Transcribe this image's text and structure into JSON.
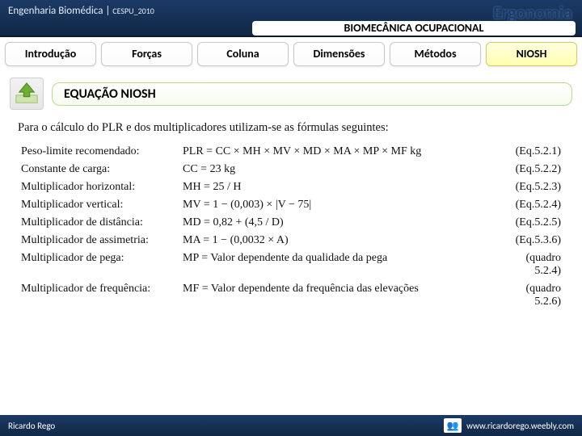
{
  "header": {
    "course_prefix": "Engenharia Biomédica",
    "course_sep": " | ",
    "course_code": "CESPU_2010",
    "brand": "Ergonomia",
    "subtitle": "BIOMECÂNICA OCUPACIONAL"
  },
  "tabs": [
    {
      "label": "Introdução",
      "active": false
    },
    {
      "label": "Forças",
      "active": false
    },
    {
      "label": "Coluna",
      "active": false
    },
    {
      "label": "Dimensões",
      "active": false
    },
    {
      "label": "Métodos",
      "active": false
    },
    {
      "label": "NIOSH",
      "active": true
    }
  ],
  "section": {
    "title": "EQUAÇÃO NIOSH",
    "intro": "Para o cálculo do PLR e dos multiplicadores utilizam-se as fórmulas seguintes:"
  },
  "formulas": [
    {
      "label": "Peso-limite recomendado:",
      "expr": "PLR = CC × MH × MV × MD × MA × MP × MF kg",
      "eq": "(Eq.5.2.1)"
    },
    {
      "label": "Constante de carga:",
      "expr": "CC = 23 kg",
      "eq": "(Eq.5.2.2)"
    },
    {
      "label": "Multiplicador horizontal:",
      "expr": "MH = 25 / H",
      "eq": "(Eq.5.2.3)"
    },
    {
      "label": "Multiplicador vertical:",
      "expr": "MV = 1 − (0,003) × |V − 75|",
      "eq": "(Eq.5.2.4)"
    },
    {
      "label": "Multiplicador de distância:",
      "expr": "MD = 0,82 + (4,5 / D)",
      "eq": "(Eq.5.2.5)"
    },
    {
      "label": "Multiplicador de assimetria:",
      "expr": "MA = 1 − (0,0032 × A)",
      "eq": "(Eq.5.3.6)"
    },
    {
      "label": "Multiplicador de pega:",
      "expr": "MP = Valor dependente da qualidade da pega",
      "eq": "(quadro 5.2.4)"
    },
    {
      "label": "Multiplicador de frequência:",
      "expr": "MF = Valor dependente da frequência das elevações",
      "eq": "(quadro 5.2.6)"
    }
  ],
  "footer": {
    "author": "Ricardo Rego",
    "url": "www.ricardorego.weebly.com"
  },
  "colors": {
    "header_bg_top": "#1b3a66",
    "header_bg_bottom": "#112845",
    "tab_active_bg": "#ffffb0",
    "section_border": "#bcd98a"
  }
}
